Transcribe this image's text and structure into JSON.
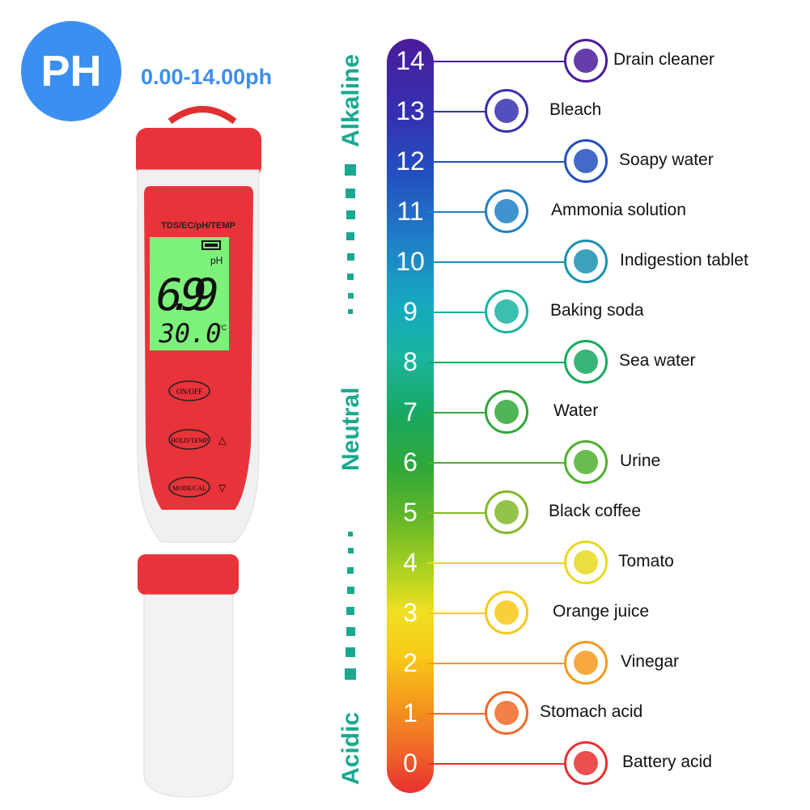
{
  "badge": "PH",
  "range": "0.00-14.00ph",
  "sides": {
    "alkaline": "Alkaline",
    "neutral": "Neutral",
    "acidic": "Acidic"
  },
  "meter": {
    "brand_label": "TDS/EC/pH/TEMP",
    "unit": "pH",
    "reading": "6.99",
    "temperature": "30.0",
    "temp_unit": "°C",
    "buttons": [
      "ON/OFF",
      "HOLD/TEMP",
      "MODE/CAL"
    ],
    "battery": "full"
  },
  "scale": [
    {
      "ph": "14",
      "label": "Drain cleaner",
      "icon": "drain-icon",
      "color": "#4a1c9c"
    },
    {
      "ph": "13",
      "label": "Bleach",
      "icon": "bleach-bottle-icon",
      "color": "#3530b0"
    },
    {
      "ph": "12",
      "label": "Soapy  water",
      "icon": "soap-foam-icon",
      "color": "#2350c0"
    },
    {
      "ph": "11",
      "label": "Ammonia solution",
      "icon": "flask-icon",
      "color": "#2080c8"
    },
    {
      "ph": "10",
      "label": "Indigestion tablet",
      "icon": "stomach-icon",
      "color": "#1a90b0"
    },
    {
      "ph": "9",
      "label": "Baking soda",
      "icon": "baking-soda-icon",
      "color": "#1ab4a0"
    },
    {
      "ph": "8",
      "label": "Sea water",
      "icon": "waves-icon",
      "color": "#18a860"
    },
    {
      "ph": "7",
      "label": "Water",
      "icon": "water-drop-icon",
      "color": "#30a838"
    },
    {
      "ph": "6",
      "label": "Urine",
      "icon": "urine-sample-icon",
      "color": "#50b030"
    },
    {
      "ph": "5",
      "label": "Black coffee",
      "icon": "coffee-icon",
      "color": "#80b828"
    },
    {
      "ph": "4",
      "label": "Tomato",
      "icon": "tomato-icon",
      "color": "#e8d820"
    },
    {
      "ph": "3",
      "label": "Orange juice",
      "icon": "orange-juice-icon",
      "color": "#f8c818"
    },
    {
      "ph": "2",
      "label": "Vinegar",
      "icon": "vinegar-bottle-icon",
      "color": "#f49a1c"
    },
    {
      "ph": "1",
      "label": "Stomach acid",
      "icon": "stomach-acid-icon",
      "color": "#f06a28"
    },
    {
      "ph": "0",
      "label": "Battery acid",
      "icon": "battery-icon",
      "color": "#e83030"
    }
  ]
}
